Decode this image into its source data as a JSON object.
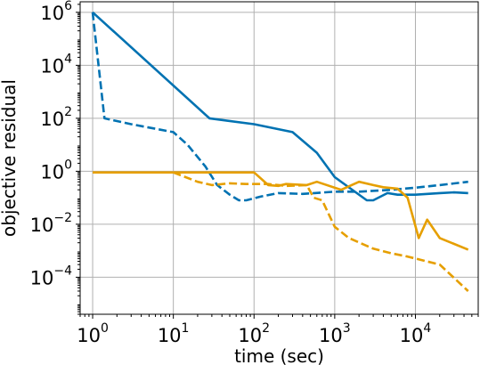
{
  "chart_data": {
    "type": "line",
    "title": "",
    "xlabel": "time (sec)",
    "ylabel": "objective residual",
    "xscale": "log",
    "yscale": "log",
    "xlim": [
      0.7,
      60000
    ],
    "ylim": [
      4e-06,
      2500000
    ],
    "xticks": [
      {
        "base": "10",
        "exp": "0",
        "value": 1
      },
      {
        "base": "10",
        "exp": "1",
        "value": 10
      },
      {
        "base": "10",
        "exp": "2",
        "value": 100
      },
      {
        "base": "10",
        "exp": "3",
        "value": 1000
      },
      {
        "base": "10",
        "exp": "4",
        "value": 10000
      }
    ],
    "yticks": [
      {
        "base": "10",
        "exp": "−4",
        "value": 0.0001
      },
      {
        "base": "10",
        "exp": "−2",
        "value": 0.01
      },
      {
        "base": "10",
        "exp": "0",
        "value": 1
      },
      {
        "base": "10",
        "exp": "2",
        "value": 100
      },
      {
        "base": "10",
        "exp": "4",
        "value": 10000
      },
      {
        "base": "10",
        "exp": "6",
        "value": 1000000
      }
    ],
    "grid": true,
    "legend": "none",
    "series": [
      {
        "color": "#0072b2",
        "dash": "solid",
        "points": [
          [
            1,
            1000000
          ],
          [
            28,
            100
          ],
          [
            100,
            60
          ],
          [
            300,
            30
          ],
          [
            600,
            5
          ],
          [
            1000,
            0.6
          ],
          [
            2500,
            0.08
          ],
          [
            3000,
            0.08
          ],
          [
            4500,
            0.15
          ],
          [
            6000,
            0.13
          ],
          [
            10000,
            0.13
          ],
          [
            20000,
            0.15
          ],
          [
            30000,
            0.16
          ],
          [
            45000,
            0.15
          ]
        ]
      },
      {
        "color": "#0072b2",
        "dash": "dashed",
        "points": [
          [
            1,
            1000000
          ],
          [
            1.4,
            100
          ],
          [
            3,
            60
          ],
          [
            10,
            30
          ],
          [
            15,
            10
          ],
          [
            25,
            1.5
          ],
          [
            35,
            0.3
          ],
          [
            50,
            0.13
          ],
          [
            65,
            0.08
          ],
          [
            80,
            0.08
          ],
          [
            120,
            0.11
          ],
          [
            200,
            0.15
          ],
          [
            400,
            0.14
          ],
          [
            1000,
            0.17
          ],
          [
            2000,
            0.17
          ],
          [
            5000,
            0.2
          ],
          [
            10000,
            0.24
          ],
          [
            20000,
            0.3
          ],
          [
            45000,
            0.4
          ]
        ]
      },
      {
        "color": "#e69f00",
        "dash": "solid",
        "points": [
          [
            1,
            0.9
          ],
          [
            10,
            0.9
          ],
          [
            100,
            0.9
          ],
          [
            150,
            0.3
          ],
          [
            200,
            0.28
          ],
          [
            250,
            0.33
          ],
          [
            450,
            0.3
          ],
          [
            600,
            0.4
          ],
          [
            1200,
            0.2
          ],
          [
            2000,
            0.4
          ],
          [
            3000,
            0.3
          ],
          [
            4000,
            0.25
          ],
          [
            6000,
            0.22
          ],
          [
            8000,
            0.1
          ],
          [
            11000,
            0.003
          ],
          [
            14000,
            0.015
          ],
          [
            20000,
            0.003
          ],
          [
            45000,
            0.0011
          ]
        ]
      },
      {
        "color": "#e69f00",
        "dash": "dashed",
        "points": [
          [
            10,
            0.9
          ],
          [
            20,
            0.4
          ],
          [
            30,
            0.3
          ],
          [
            50,
            0.35
          ],
          [
            80,
            0.33
          ],
          [
            150,
            0.33
          ],
          [
            250,
            0.28
          ],
          [
            450,
            0.3
          ],
          [
            550,
            0.1
          ],
          [
            700,
            0.08
          ],
          [
            1000,
            0.008
          ],
          [
            1500,
            0.003
          ],
          [
            3000,
            0.0012
          ],
          [
            5000,
            0.0008
          ],
          [
            8000,
            0.0006
          ],
          [
            20000,
            0.0003
          ],
          [
            45000,
            3e-05
          ]
        ]
      }
    ]
  }
}
